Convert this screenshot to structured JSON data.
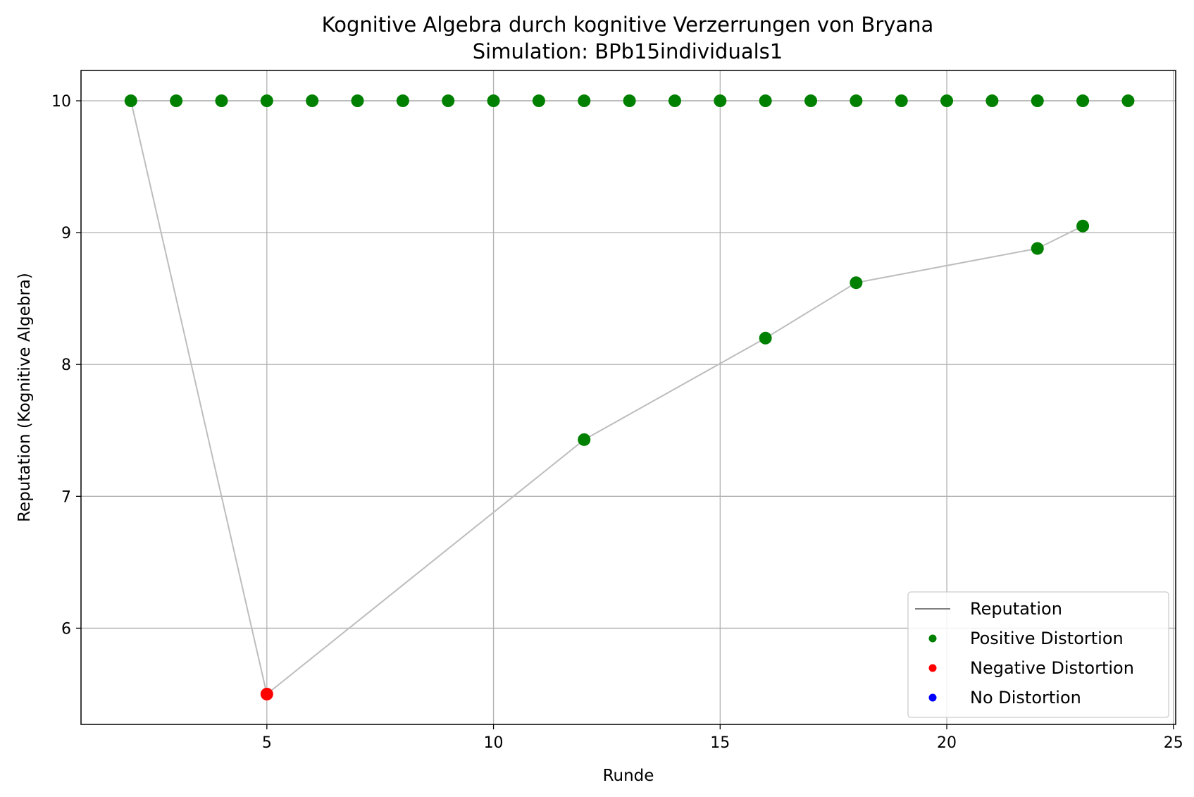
{
  "chart_data": {
    "type": "line",
    "title": "Kognitive Algebra durch kognitive Verzerrungen von Bryana",
    "subtitle": "Simulation: BPb15individuals1",
    "xlabel": "Runde",
    "ylabel": "Reputation (Kognitive Algebra)",
    "xlim": [
      0.9,
      25.05
    ],
    "ylim": [
      5.27,
      10.23
    ],
    "xticks": [
      5,
      10,
      15,
      20,
      25
    ],
    "yticks": [
      6,
      7,
      8,
      9,
      10
    ],
    "grid": true,
    "legend_position": "lower right",
    "colors": {
      "reputation_line": "#bdbdbd",
      "legend_line": "#808080",
      "positive": "#008000",
      "negative": "#ff0000",
      "none": "#0000ff",
      "grid": "#b0b0b0"
    },
    "series": [
      {
        "name": "Reputation",
        "note": "upper line",
        "points": [
          [
            2,
            10
          ],
          [
            3,
            10
          ],
          [
            4,
            10
          ],
          [
            5,
            10
          ],
          [
            6,
            10
          ],
          [
            7,
            10
          ],
          [
            8,
            10
          ],
          [
            9,
            10
          ],
          [
            10,
            10
          ],
          [
            11,
            10
          ],
          [
            12,
            10
          ],
          [
            13,
            10
          ],
          [
            14,
            10
          ],
          [
            15,
            10
          ],
          [
            16,
            10
          ],
          [
            17,
            10
          ],
          [
            18,
            10
          ],
          [
            19,
            10
          ],
          [
            20,
            10
          ],
          [
            21,
            10
          ],
          [
            22,
            10
          ],
          [
            23,
            10
          ],
          [
            24,
            10
          ]
        ]
      },
      {
        "name": "Reputation",
        "note": "lower line",
        "points": [
          [
            2,
            10
          ],
          [
            5,
            5.5
          ],
          [
            12,
            7.43
          ],
          [
            16,
            8.2
          ],
          [
            18,
            8.62
          ],
          [
            22,
            8.88
          ],
          [
            23,
            9.05
          ]
        ]
      }
    ],
    "markers": [
      {
        "x": 2,
        "y": 10,
        "kind": "positive"
      },
      {
        "x": 3,
        "y": 10,
        "kind": "positive"
      },
      {
        "x": 4,
        "y": 10,
        "kind": "positive"
      },
      {
        "x": 5,
        "y": 10,
        "kind": "positive"
      },
      {
        "x": 6,
        "y": 10,
        "kind": "positive"
      },
      {
        "x": 7,
        "y": 10,
        "kind": "positive"
      },
      {
        "x": 8,
        "y": 10,
        "kind": "positive"
      },
      {
        "x": 9,
        "y": 10,
        "kind": "positive"
      },
      {
        "x": 10,
        "y": 10,
        "kind": "positive"
      },
      {
        "x": 11,
        "y": 10,
        "kind": "positive"
      },
      {
        "x": 12,
        "y": 10,
        "kind": "positive"
      },
      {
        "x": 13,
        "y": 10,
        "kind": "positive"
      },
      {
        "x": 14,
        "y": 10,
        "kind": "positive"
      },
      {
        "x": 15,
        "y": 10,
        "kind": "positive"
      },
      {
        "x": 16,
        "y": 10,
        "kind": "positive"
      },
      {
        "x": 17,
        "y": 10,
        "kind": "positive"
      },
      {
        "x": 18,
        "y": 10,
        "kind": "positive"
      },
      {
        "x": 19,
        "y": 10,
        "kind": "positive"
      },
      {
        "x": 20,
        "y": 10,
        "kind": "positive"
      },
      {
        "x": 21,
        "y": 10,
        "kind": "positive"
      },
      {
        "x": 22,
        "y": 10,
        "kind": "positive"
      },
      {
        "x": 23,
        "y": 10,
        "kind": "positive"
      },
      {
        "x": 24,
        "y": 10,
        "kind": "positive"
      },
      {
        "x": 5,
        "y": 5.5,
        "kind": "negative"
      },
      {
        "x": 12,
        "y": 7.43,
        "kind": "positive"
      },
      {
        "x": 16,
        "y": 8.2,
        "kind": "positive"
      },
      {
        "x": 18,
        "y": 8.62,
        "kind": "positive"
      },
      {
        "x": 22,
        "y": 8.88,
        "kind": "positive"
      },
      {
        "x": 23,
        "y": 9.05,
        "kind": "positive"
      }
    ],
    "legend": [
      {
        "label": "Reputation",
        "kind": "line"
      },
      {
        "label": "Positive Distortion",
        "kind": "positive"
      },
      {
        "label": "Negative Distortion",
        "kind": "negative"
      },
      {
        "label": "No Distortion",
        "kind": "none"
      }
    ]
  }
}
